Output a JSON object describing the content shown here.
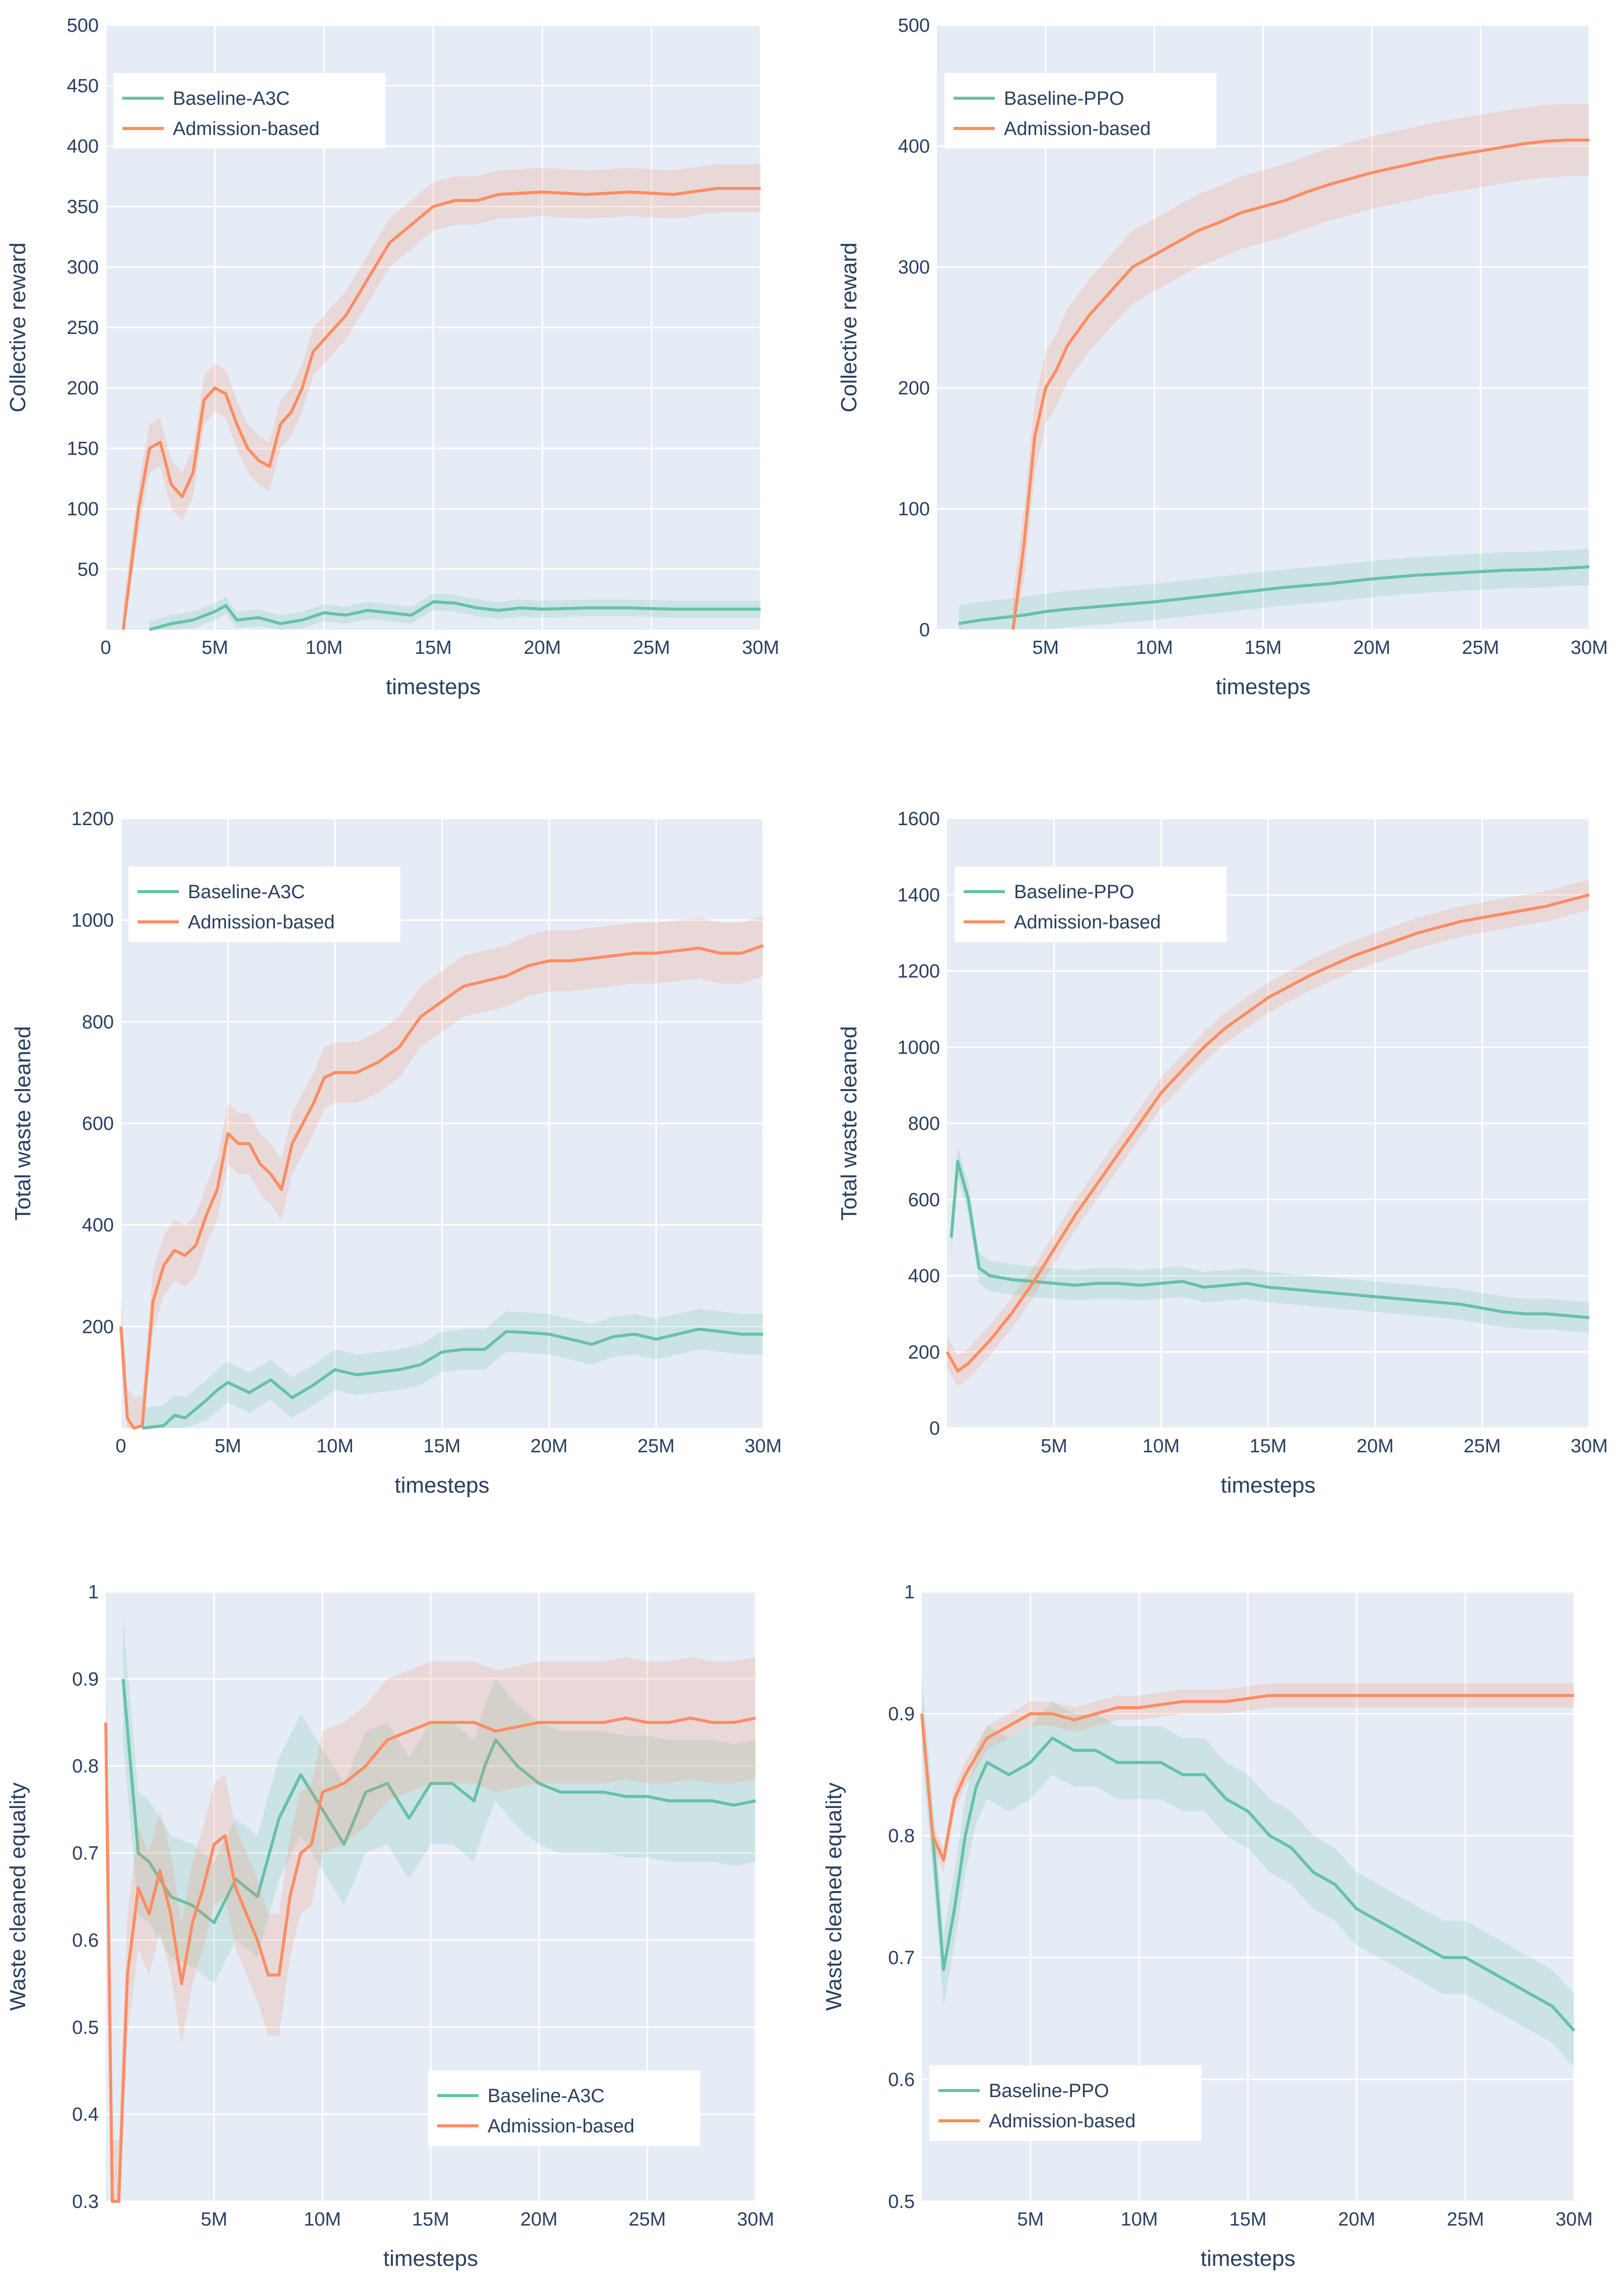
{
  "colors": {
    "baseline": "#66c2a5",
    "admission": "#fc8d62",
    "plot_bg": "#e5ecf6",
    "text": "#2a3f5f"
  },
  "chart_data": [
    {
      "id": "a3c-reward",
      "type": "line",
      "xlabel": "timesteps",
      "ylabel": "Collective reward",
      "xlim": [
        0,
        30
      ],
      "ylim": [
        0,
        500
      ],
      "xticks": [
        0,
        5,
        10,
        15,
        20,
        25,
        30
      ],
      "xticklabels": [
        "0",
        "5M",
        "10M",
        "15M",
        "20M",
        "25M",
        "30M"
      ],
      "yticks": [
        50,
        100,
        150,
        200,
        250,
        300,
        350,
        400,
        450,
        500
      ],
      "yticklabels": [
        "50",
        "100",
        "150",
        "200",
        "250",
        "300",
        "350",
        "400",
        "450",
        "500"
      ],
      "legend": "top-left",
      "legend_labels": [
        "Baseline-A3C",
        "Admission-based"
      ],
      "series": [
        {
          "name": "Baseline-A3C",
          "style": "baseline",
          "band": 7,
          "x": [
            2,
            3,
            4,
            5,
            5.5,
            6,
            7,
            8,
            9,
            10,
            11,
            12,
            13,
            14,
            15,
            16,
            17,
            18,
            19,
            20,
            22,
            24,
            26,
            28,
            30
          ],
          "y": [
            0,
            5,
            8,
            15,
            20,
            8,
            10,
            5,
            8,
            14,
            12,
            16,
            14,
            12,
            23,
            22,
            18,
            16,
            18,
            17,
            18,
            18,
            17,
            17,
            17
          ]
        },
        {
          "name": "Admission-based",
          "style": "admission",
          "band": 20,
          "x": [
            0.8,
            1.5,
            2,
            2.5,
            3,
            3.5,
            4,
            4.5,
            5,
            5.5,
            6,
            6.5,
            7,
            7.5,
            8,
            8.5,
            9,
            9.5,
            10,
            11,
            12,
            13,
            14,
            15,
            16,
            17,
            18,
            20,
            22,
            24,
            26,
            28,
            30
          ],
          "y": [
            0,
            100,
            150,
            155,
            120,
            110,
            130,
            190,
            200,
            195,
            170,
            150,
            140,
            135,
            170,
            180,
            200,
            230,
            240,
            260,
            290,
            320,
            335,
            350,
            355,
            355,
            360,
            362,
            360,
            362,
            360,
            365,
            365
          ]
        }
      ]
    },
    {
      "id": "ppo-reward",
      "type": "line",
      "xlabel": "timesteps",
      "ylabel": "Collective reward",
      "xlim": [
        0,
        30
      ],
      "ylim": [
        0,
        500
      ],
      "xticks": [
        5,
        10,
        15,
        20,
        25,
        30
      ],
      "xticklabels": [
        "5M",
        "10M",
        "15M",
        "20M",
        "25M",
        "30M"
      ],
      "yticks": [
        0,
        100,
        200,
        300,
        400,
        500
      ],
      "yticklabels": [
        "0",
        "100",
        "200",
        "300",
        "400",
        "500"
      ],
      "legend": "top-left",
      "legend_labels": [
        "Baseline-PPO",
        "Admission-based"
      ],
      "series": [
        {
          "name": "Baseline-PPO",
          "style": "baseline",
          "band": 15,
          "x": [
            1,
            2,
            3,
            4,
            5,
            6,
            8,
            10,
            12,
            14,
            16,
            18,
            20,
            22,
            24,
            26,
            28,
            30
          ],
          "y": [
            5,
            8,
            10,
            12,
            15,
            17,
            20,
            23,
            27,
            31,
            35,
            38,
            42,
            45,
            47,
            49,
            50,
            52
          ]
        },
        {
          "name": "Admission-based",
          "style": "admission",
          "band": 30,
          "x": [
            3.5,
            4,
            4.5,
            5,
            5.5,
            6,
            7,
            8,
            9,
            10,
            11,
            12,
            13,
            14,
            15,
            16,
            17,
            18,
            19,
            20,
            21,
            22,
            23,
            24,
            25,
            26,
            27,
            28,
            29,
            30
          ],
          "y": [
            0,
            70,
            160,
            200,
            215,
            235,
            260,
            280,
            300,
            310,
            320,
            330,
            337,
            345,
            350,
            355,
            362,
            368,
            373,
            378,
            382,
            386,
            390,
            393,
            396,
            399,
            402,
            404,
            405,
            405
          ]
        }
      ]
    },
    {
      "id": "a3c-waste",
      "type": "line",
      "xlabel": "timesteps",
      "ylabel": "Total waste cleaned",
      "xlim": [
        0,
        30
      ],
      "ylim": [
        0,
        1200
      ],
      "xticks": [
        0,
        5,
        10,
        15,
        20,
        25,
        30
      ],
      "xticklabels": [
        "0",
        "5M",
        "10M",
        "15M",
        "20M",
        "25M",
        "30M"
      ],
      "yticks": [
        200,
        400,
        600,
        800,
        1000,
        1200
      ],
      "yticklabels": [
        "200",
        "400",
        "600",
        "800",
        "1000",
        "1200"
      ],
      "legend": "top-left",
      "legend_labels": [
        "Baseline-A3C",
        "Admission-based"
      ],
      "series": [
        {
          "name": "Baseline-A3C",
          "style": "baseline",
          "band": 40,
          "x": [
            1,
            2,
            2.5,
            3,
            4,
            4.5,
            5,
            6,
            7,
            8,
            9,
            10,
            11,
            12,
            13,
            14,
            15,
            16,
            17,
            18,
            19,
            20,
            21,
            22,
            23,
            24,
            25,
            26,
            27,
            28,
            29,
            30
          ],
          "y": [
            0,
            5,
            25,
            20,
            55,
            75,
            90,
            70,
            95,
            60,
            85,
            115,
            105,
            110,
            115,
            125,
            150,
            155,
            155,
            190,
            188,
            185,
            175,
            165,
            180,
            185,
            175,
            185,
            195,
            190,
            185,
            185
          ]
        },
        {
          "name": "Admission-based",
          "style": "admission",
          "band": 60,
          "x": [
            0,
            0.3,
            0.6,
            1,
            1.5,
            2,
            2.5,
            3,
            3.5,
            4,
            4.5,
            5,
            5.5,
            6,
            6.5,
            7,
            7.5,
            8,
            8.5,
            9,
            9.5,
            10,
            11,
            12,
            13,
            14,
            15,
            16,
            17,
            18,
            19,
            20,
            21,
            22,
            23,
            24,
            25,
            26,
            27,
            28,
            29,
            30
          ],
          "y": [
            200,
            20,
            0,
            5,
            250,
            320,
            350,
            340,
            360,
            420,
            470,
            580,
            560,
            560,
            520,
            500,
            470,
            560,
            600,
            640,
            690,
            700,
            700,
            720,
            750,
            810,
            840,
            870,
            880,
            890,
            910,
            920,
            920,
            925,
            930,
            935,
            935,
            940,
            945,
            935,
            935,
            950
          ]
        }
      ]
    },
    {
      "id": "ppo-waste",
      "type": "line",
      "xlabel": "timesteps",
      "ylabel": "Total waste cleaned",
      "xlim": [
        0,
        30
      ],
      "ylim": [
        0,
        1600
      ],
      "xticks": [
        5,
        10,
        15,
        20,
        25,
        30
      ],
      "xticklabels": [
        "5M",
        "10M",
        "15M",
        "20M",
        "25M",
        "30M"
      ],
      "yticks": [
        0,
        200,
        400,
        600,
        800,
        1000,
        1200,
        1400,
        1600
      ],
      "yticklabels": [
        "0",
        "200",
        "400",
        "600",
        "800",
        "1000",
        "1200",
        "1400",
        "1600"
      ],
      "legend": "top-left",
      "legend_labels": [
        "Baseline-PPO",
        "Admission-based"
      ],
      "series": [
        {
          "name": "Baseline-PPO",
          "style": "baseline",
          "band": 40,
          "x": [
            0.2,
            0.5,
            1,
            1.5,
            2,
            3,
            4,
            5,
            6,
            7,
            8,
            9,
            10,
            11,
            12,
            13,
            14,
            15,
            16,
            17,
            18,
            19,
            20,
            21,
            22,
            23,
            24,
            25,
            26,
            27,
            28,
            29,
            30
          ],
          "y": [
            500,
            700,
            600,
            420,
            400,
            390,
            385,
            380,
            375,
            380,
            380,
            375,
            380,
            385,
            370,
            375,
            380,
            370,
            365,
            360,
            355,
            350,
            345,
            340,
            335,
            330,
            325,
            315,
            305,
            300,
            300,
            295,
            290
          ]
        },
        {
          "name": "Admission-based",
          "style": "admission",
          "band": 40,
          "x": [
            0,
            0.5,
            1,
            2,
            3,
            4,
            5,
            6,
            7,
            8,
            9,
            10,
            11,
            12,
            13,
            14,
            15,
            16,
            17,
            18,
            19,
            20,
            21,
            22,
            23,
            24,
            25,
            26,
            27,
            28,
            29,
            30
          ],
          "y": [
            200,
            150,
            170,
            230,
            300,
            380,
            470,
            560,
            640,
            720,
            800,
            880,
            940,
            1000,
            1050,
            1090,
            1130,
            1160,
            1190,
            1215,
            1240,
            1260,
            1280,
            1300,
            1315,
            1330,
            1340,
            1350,
            1360,
            1370,
            1385,
            1400
          ]
        }
      ]
    },
    {
      "id": "a3c-equality",
      "type": "line",
      "xlabel": "timesteps",
      "ylabel": "Waste cleaned equality",
      "xlim": [
        0,
        30
      ],
      "ylim": [
        0.3,
        1
      ],
      "xticks": [
        5,
        10,
        15,
        20,
        25,
        30
      ],
      "xticklabels": [
        "5M",
        "10M",
        "15M",
        "20M",
        "25M",
        "30M"
      ],
      "yticks": [
        0.3,
        0.4,
        0.5,
        0.6,
        0.7,
        0.8,
        0.9,
        1
      ],
      "yticklabels": [
        "0.3",
        "0.4",
        "0.5",
        "0.6",
        "0.7",
        "0.8",
        "0.9",
        "1"
      ],
      "legend": "bottom-right",
      "legend_labels": [
        "Baseline-A3C",
        "Admission-based"
      ],
      "series": [
        {
          "name": "Baseline-A3C",
          "style": "baseline",
          "band": 0.07,
          "x": [
            0.8,
            1.5,
            2,
            3,
            4,
            5,
            6,
            7,
            8,
            9,
            10,
            11,
            12,
            13,
            14,
            15,
            16,
            17,
            17.5,
            18,
            19,
            20,
            21,
            22,
            23,
            24,
            25,
            26,
            27,
            28,
            29,
            30
          ],
          "y": [
            0.9,
            0.7,
            0.69,
            0.65,
            0.64,
            0.62,
            0.67,
            0.65,
            0.74,
            0.79,
            0.75,
            0.71,
            0.77,
            0.78,
            0.74,
            0.78,
            0.78,
            0.76,
            0.8,
            0.83,
            0.8,
            0.78,
            0.77,
            0.77,
            0.77,
            0.765,
            0.765,
            0.76,
            0.76,
            0.76,
            0.755,
            0.76
          ]
        },
        {
          "name": "Admission-based",
          "style": "admission",
          "band": 0.07,
          "x": [
            0,
            0.3,
            0.6,
            1,
            1.5,
            2,
            2.5,
            3,
            3.5,
            4,
            4.5,
            5,
            5.5,
            6,
            6.5,
            7,
            7.5,
            8,
            8.5,
            9,
            9.5,
            10,
            11,
            12,
            13,
            14,
            15,
            16,
            17,
            18,
            19,
            20,
            21,
            22,
            23,
            24,
            25,
            26,
            27,
            28,
            29,
            30
          ],
          "y": [
            0.85,
            0.3,
            0.3,
            0.56,
            0.66,
            0.63,
            0.68,
            0.63,
            0.55,
            0.62,
            0.66,
            0.71,
            0.72,
            0.66,
            0.63,
            0.6,
            0.56,
            0.56,
            0.65,
            0.7,
            0.71,
            0.77,
            0.78,
            0.8,
            0.83,
            0.84,
            0.85,
            0.85,
            0.85,
            0.84,
            0.845,
            0.85,
            0.85,
            0.85,
            0.85,
            0.855,
            0.85,
            0.85,
            0.855,
            0.85,
            0.85,
            0.855
          ]
        }
      ]
    },
    {
      "id": "ppo-equality",
      "type": "line",
      "xlabel": "timesteps",
      "ylabel": "Waste cleaned equality",
      "xlim": [
        0,
        30
      ],
      "ylim": [
        0.5,
        1
      ],
      "xticks": [
        5,
        10,
        15,
        20,
        25,
        30
      ],
      "xticklabels": [
        "5M",
        "10M",
        "15M",
        "20M",
        "25M",
        "30M"
      ],
      "yticks": [
        0.5,
        0.6,
        0.7,
        0.8,
        0.9,
        1
      ],
      "yticklabels": [
        "0.5",
        "0.6",
        "0.7",
        "0.8",
        "0.9",
        "1"
      ],
      "legend": "bottom-left",
      "legend_labels": [
        "Baseline-PPO",
        "Admission-based"
      ],
      "series": [
        {
          "name": "Baseline-PPO",
          "style": "baseline",
          "band": 0.03,
          "x": [
            0,
            0.5,
            1,
            1.5,
            2,
            2.5,
            3,
            4,
            5,
            6,
            7,
            8,
            9,
            10,
            11,
            12,
            13,
            14,
            15,
            16,
            17,
            18,
            19,
            20,
            21,
            22,
            23,
            24,
            25,
            26,
            27,
            28,
            29,
            30
          ],
          "y": [
            0.9,
            0.8,
            0.69,
            0.74,
            0.8,
            0.84,
            0.86,
            0.85,
            0.86,
            0.88,
            0.87,
            0.87,
            0.86,
            0.86,
            0.86,
            0.85,
            0.85,
            0.83,
            0.82,
            0.8,
            0.79,
            0.77,
            0.76,
            0.74,
            0.73,
            0.72,
            0.71,
            0.7,
            0.7,
            0.69,
            0.68,
            0.67,
            0.66,
            0.64
          ]
        },
        {
          "name": "Admission-based",
          "style": "admission",
          "band": 0.01,
          "x": [
            0,
            0.5,
            1,
            1.5,
            2,
            3,
            4,
            5,
            6,
            7,
            8,
            9,
            10,
            12,
            14,
            16,
            18,
            20,
            22,
            24,
            26,
            28,
            30
          ],
          "y": [
            0.9,
            0.8,
            0.78,
            0.83,
            0.85,
            0.88,
            0.89,
            0.9,
            0.9,
            0.895,
            0.9,
            0.905,
            0.905,
            0.91,
            0.91,
            0.915,
            0.915,
            0.915,
            0.915,
            0.915,
            0.915,
            0.915,
            0.915
          ]
        }
      ]
    }
  ]
}
